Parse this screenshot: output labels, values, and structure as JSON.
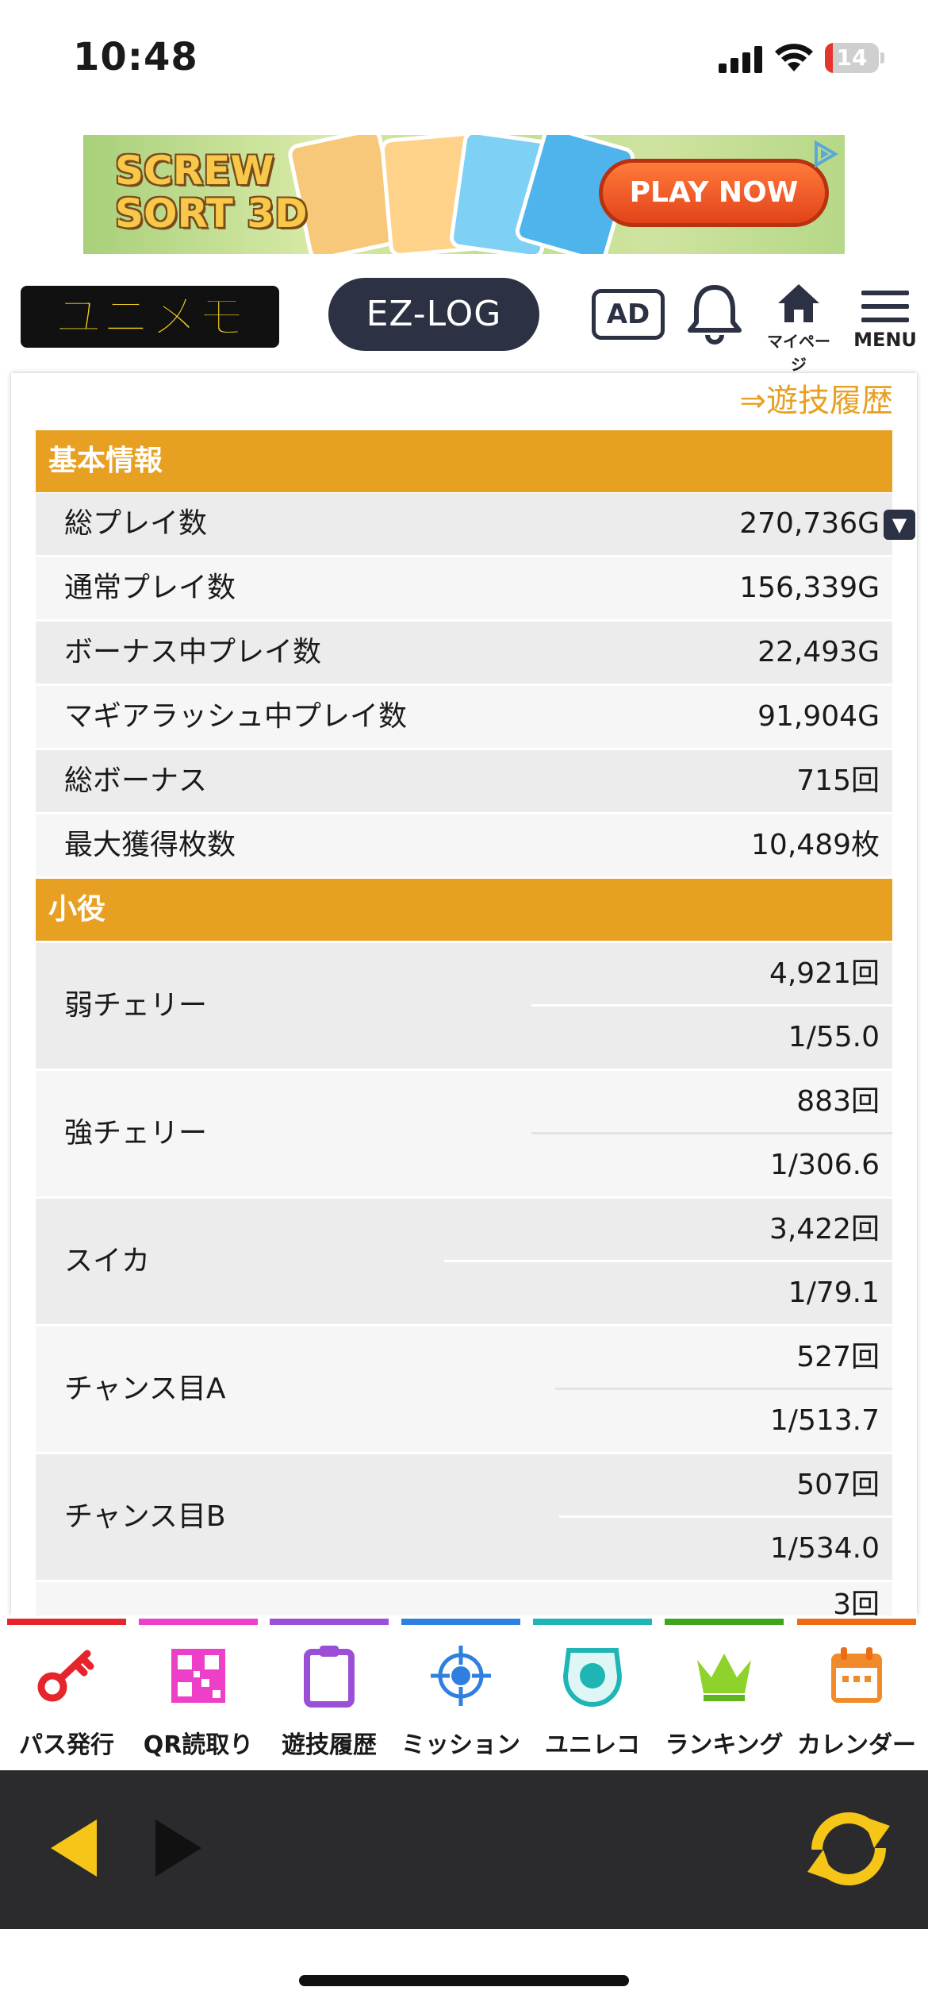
{
  "status_bar": {
    "time": "10:48",
    "battery_percent": 14,
    "battery_text": "14"
  },
  "ad_banner": {
    "title": "SCREW SORT 3D",
    "cta": "PLAY NOW"
  },
  "header": {
    "logo_text": "ユニメモ",
    "ezlog_label": "EZ-LOG",
    "ad_label": "AD",
    "mypage_label": "マイページ",
    "menu_label": "MENU"
  },
  "content": {
    "history_link": "⇒遊技履歴",
    "basic_info": {
      "title": "基本情報",
      "rows": [
        {
          "label": "総プレイ数",
          "value": "270,736G"
        },
        {
          "label": "通常プレイ数",
          "value": "156,339G"
        },
        {
          "label": "ボーナス中プレイ数",
          "value": "22,493G"
        },
        {
          "label": "マギアラッシュ中プレイ数",
          "value": "91,904G"
        },
        {
          "label": "総ボーナス",
          "value": "715回"
        },
        {
          "label": "最大獲得枚数",
          "value": "10,489枚"
        }
      ]
    },
    "small_roles": {
      "title": "小役",
      "rows": [
        {
          "label": "弱チェリー",
          "count": "4,921回",
          "rate": "1/55.0"
        },
        {
          "label": "強チェリー",
          "count": "883回",
          "rate": "1/306.6"
        },
        {
          "label": "スイカ",
          "count": "3,422回",
          "rate": "1/79.1"
        },
        {
          "label": "チャンス目A",
          "count": "527回",
          "rate": "1/513.7"
        },
        {
          "label": "チャンス目B",
          "count": "507回",
          "rate": "1/534.0"
        }
      ],
      "partial_value": "3回"
    }
  },
  "bottom_nav": {
    "items": [
      {
        "label": "パス発行",
        "color": "#e5242b",
        "icon": "key-icon"
      },
      {
        "label": "QR読取り",
        "color": "#ee3fc8",
        "icon": "qr-code-icon"
      },
      {
        "label": "遊技履歴",
        "color": "#9b4fd6",
        "icon": "clipboard-icon"
      },
      {
        "label": "ミッション",
        "color": "#2f7fe0",
        "icon": "target-icon"
      },
      {
        "label": "ユニレコ",
        "color": "#1fb5b5",
        "icon": "unireco-icon"
      },
      {
        "label": "ランキング",
        "color": "#3ea51c",
        "icon": "crown-icon"
      },
      {
        "label": "カレンダー",
        "color": "#ee6c14",
        "icon": "calendar-icon"
      }
    ]
  },
  "colors": {
    "accent": "#e8a023",
    "navy": "#2c3243",
    "toolbar": "#2b2b2d",
    "toolbar_icon": "#f5c518"
  }
}
